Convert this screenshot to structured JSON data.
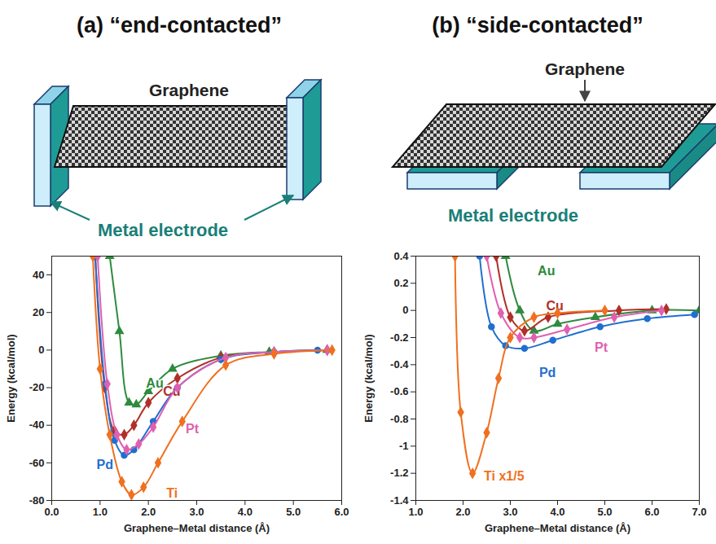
{
  "diagrams": [
    {
      "title": "(a) “end-contacted”",
      "sheet_label": "Graphene",
      "electrode_label": "Metal electrode"
    },
    {
      "title": "(b) “side-contacted”",
      "sheet_label": "Graphene",
      "electrode_label": "Metal electrode"
    }
  ],
  "chart_data": [
    {
      "type": "line",
      "x_label": "Graphene–Metal distance (Å)",
      "y_label": "Energy (kcal/mol)",
      "xlim": [
        0,
        6
      ],
      "xticks": [
        {
          "value": 0,
          "label": "0.0"
        },
        {
          "value": 1,
          "label": "1.0"
        },
        {
          "value": 2,
          "label": "2.0"
        },
        {
          "value": 3,
          "label": "3.0"
        },
        {
          "value": 4,
          "label": "4.0"
        },
        {
          "value": 5,
          "label": "5.0"
        },
        {
          "value": 6,
          "label": "6.0"
        }
      ],
      "ylim": [
        -80,
        50
      ],
      "yticks": [
        -80,
        -60,
        -40,
        -20,
        0,
        20,
        40
      ],
      "grid": false,
      "series": [
        {
          "name": "Au",
          "color": "#2e8b3e",
          "marker": "triangle",
          "line_style": "solid",
          "x": [
            1.2,
            1.4,
            1.6,
            1.75,
            2.0,
            2.5,
            3.5,
            4.5,
            5.7
          ],
          "values": [
            50,
            10,
            -28,
            -29,
            -22,
            -10,
            -3,
            -1,
            0
          ]
        },
        {
          "name": "Cu",
          "color": "#b03028",
          "marker": "diamond",
          "line_style": "solid",
          "x": [
            0.9,
            1.1,
            1.3,
            1.5,
            1.7,
            2.0,
            2.6,
            3.5,
            4.6,
            5.7
          ],
          "values": [
            50,
            -20,
            -43,
            -45,
            -40,
            -28,
            -15,
            -4,
            -1,
            0
          ]
        },
        {
          "name": "Pd",
          "color": "#1f6fd0",
          "marker": "circle",
          "line_style": "solid",
          "x": [
            0.9,
            1.1,
            1.3,
            1.5,
            1.7,
            2.1,
            2.6,
            3.5,
            4.6,
            5.5
          ],
          "values": [
            50,
            -18,
            -48,
            -56,
            -53,
            -38,
            -20,
            -5,
            -1,
            0
          ]
        },
        {
          "name": "Pt",
          "color": "#e060b0",
          "marker": "diamond",
          "line_style": "solid",
          "x": [
            0.95,
            1.15,
            1.35,
            1.55,
            1.8,
            2.1,
            2.6,
            3.6,
            4.6,
            5.7
          ],
          "values": [
            50,
            -18,
            -45,
            -53,
            -50,
            -41,
            -20,
            -4,
            -1,
            0
          ]
        },
        {
          "name": "Ti",
          "color": "#f07020",
          "marker": "diamond",
          "line_style": "solid",
          "x": [
            0.85,
            1.0,
            1.2,
            1.45,
            1.65,
            1.9,
            2.2,
            2.7,
            3.6,
            4.6,
            5.8
          ],
          "values": [
            50,
            -10,
            -45,
            -70,
            -77,
            -73,
            -60,
            -38,
            -8,
            -2,
            0
          ]
        }
      ]
    },
    {
      "type": "line",
      "x_label": "Graphene–Metal distance (Å)",
      "y_label": "Energy (kcal/mol)",
      "xlim": [
        1,
        7
      ],
      "xticks": [
        {
          "value": 1,
          "label": "1.0"
        },
        {
          "value": 2,
          "label": "2.0"
        },
        {
          "value": 3,
          "label": "3.0"
        },
        {
          "value": 4,
          "label": "4.0"
        },
        {
          "value": 5,
          "label": "5.0"
        },
        {
          "value": 6,
          "label": "6.0"
        },
        {
          "value": 7,
          "label": "7.0"
        }
      ],
      "ylim": [
        -1.4,
        0.4
      ],
      "yticks": [
        -1.4,
        -1.2,
        -1,
        -0.8,
        -0.6,
        -0.4,
        -0.2,
        0,
        0.2,
        0.4
      ],
      "grid": false,
      "series": [
        {
          "name": "Au",
          "color": "#2e8b3e",
          "marker": "triangle",
          "line_style": "solid",
          "x": [
            2.9,
            3.2,
            3.5,
            4.0,
            4.8,
            6.0,
            7.0
          ],
          "values": [
            0.4,
            0.0,
            -0.15,
            -0.1,
            -0.05,
            0.0,
            0.0
          ]
        },
        {
          "name": "Cu",
          "color": "#b03028",
          "marker": "diamond",
          "line_style": "solid",
          "x": [
            2.7,
            3.0,
            3.3,
            3.8,
            5.3,
            6.3
          ],
          "values": [
            0.4,
            -0.05,
            -0.15,
            -0.05,
            0.0,
            0.01
          ]
        },
        {
          "name": "Pd",
          "color": "#1f6fd0",
          "marker": "circle",
          "line_style": "solid",
          "x": [
            2.35,
            2.6,
            2.9,
            3.3,
            3.9,
            4.9,
            5.9,
            6.9
          ],
          "values": [
            0.4,
            -0.12,
            -0.26,
            -0.28,
            -0.22,
            -0.12,
            -0.06,
            -0.03
          ]
        },
        {
          "name": "Pt",
          "color": "#e060b0",
          "marker": "diamond",
          "line_style": "solid",
          "x": [
            2.5,
            2.8,
            3.2,
            3.5,
            4.2,
            5.2,
            6.2
          ],
          "values": [
            0.4,
            -0.02,
            -0.2,
            -0.2,
            -0.14,
            -0.05,
            0.0
          ]
        },
        {
          "name": "Ti x1/5",
          "color": "#f07020",
          "marker": "diamond",
          "line_style": "solid",
          "x": [
            1.83,
            1.95,
            2.2,
            2.5,
            2.75,
            3.0,
            3.5,
            4.0,
            5.0
          ],
          "values": [
            0.4,
            -0.75,
            -1.2,
            -0.9,
            -0.5,
            -0.2,
            -0.05,
            -0.02,
            0.0
          ]
        }
      ]
    }
  ]
}
